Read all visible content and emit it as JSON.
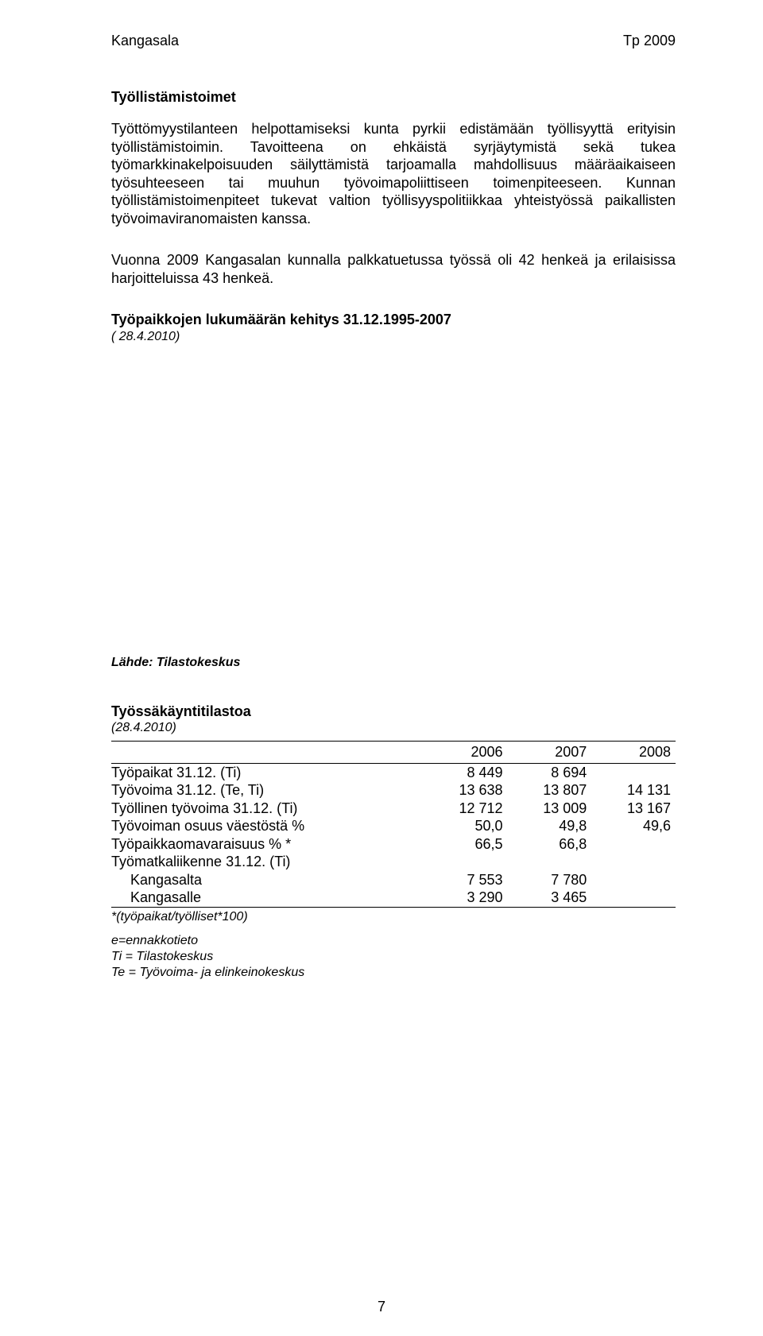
{
  "header": {
    "left": "Kangasala",
    "right": "Tp 2009"
  },
  "section1": {
    "title": "Työllistämistoimet",
    "para": "Työttömyystilanteen helpottamiseksi kunta pyrkii edistämään työllisyyttä erityisin työllistämistoimin. Tavoitteena on ehkäistä syrjäytymistä sekä tukea työmarkkinakelpoisuuden säilyttämistä tarjoamalla mahdollisuus määräaikaiseen työsuhteeseen tai muuhun työvoimapoliittiseen toimenpiteeseen. Kunnan työllistämistoimenpiteet tukevat valtion työllisyyspolitiikkaa yhteistyössä paikallisten työvoimaviranomaisten kanssa."
  },
  "para2": "Vuonna 2009 Kangasalan kunnalla palkkatuetussa työssä oli 42 henkeä ja erilaisissa harjoitteluissa 43 henkeä.",
  "chart_section": {
    "title": "Työpaikkojen lukumäärän kehitys 31.12.1995-2007",
    "date_label": "( 28.4.2010)"
  },
  "source_label": "Lähde: Tilastokeskus",
  "table_section": {
    "title": "Työssäkäyntitilastoa",
    "date_label": "(28.4.2010)",
    "columns": [
      "",
      "2006",
      "2007",
      "2008"
    ],
    "rows": [
      {
        "label": "Työpaikat 31.12. (Ti)",
        "vals": [
          "8 449",
          "8 694",
          ""
        ]
      },
      {
        "label": "Työvoima 31.12. (Te, Ti)",
        "vals": [
          "13 638",
          "13 807",
          "14 131"
        ]
      },
      {
        "label": "Työllinen työvoima 31.12. (Ti)",
        "vals": [
          "12 712",
          "13 009",
          "13 167"
        ]
      },
      {
        "label": "Työvoiman osuus väestöstä %",
        "vals": [
          "50,0",
          "49,8",
          "49,6"
        ]
      },
      {
        "label": "Työpaikkaomavaraisuus % *",
        "vals": [
          "66,5",
          "66,8",
          ""
        ]
      },
      {
        "label": "Työmatkaliikenne 31.12. (Ti)",
        "vals": [
          "",
          "",
          ""
        ]
      },
      {
        "label": "Kangasalta",
        "vals": [
          "7 553",
          "7 780",
          ""
        ],
        "indent": true
      },
      {
        "label": "Kangasalle",
        "vals": [
          "3 290",
          "3 465",
          ""
        ],
        "indent": true,
        "last": true
      }
    ],
    "footnote": "*(työpaikat/työlliset*100)",
    "legend": [
      "e=ennakkotieto",
      "Ti = Tilastokeskus",
      "Te = Työvoima- ja elinkeinokeskus"
    ]
  },
  "page_number": "7"
}
